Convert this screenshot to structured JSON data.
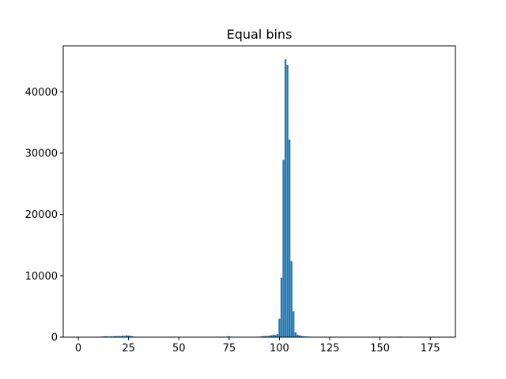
{
  "chart_data": {
    "type": "bar",
    "title": "Equal bins",
    "xlabel": "",
    "ylabel": "",
    "xlim": [
      -7.5,
      187.5
    ],
    "ylim": [
      0,
      47500
    ],
    "grid": false,
    "bar_color": "#1f77b4",
    "x_ticks": [
      0,
      25,
      50,
      75,
      100,
      125,
      150,
      175
    ],
    "y_ticks": [
      0,
      10000,
      20000,
      30000,
      40000
    ],
    "x_tick_labels": [
      "0",
      "25",
      "50",
      "75",
      "100",
      "125",
      "150",
      "175"
    ],
    "y_tick_labels": [
      "0",
      "10000",
      "20000",
      "30000",
      "40000"
    ],
    "x": [
      0,
      11,
      12,
      13,
      14,
      15,
      16,
      17,
      18,
      19,
      20,
      21,
      22,
      23,
      24,
      25,
      26,
      27,
      74,
      75,
      76,
      90,
      91,
      92,
      93,
      94,
      95,
      96,
      97,
      98,
      99,
      100,
      101,
      102,
      103,
      104,
      105,
      106,
      107,
      108,
      109,
      110,
      111,
      112,
      113,
      114,
      115,
      160,
      170
    ],
    "values": [
      50,
      80,
      100,
      120,
      150,
      100,
      130,
      120,
      180,
      160,
      200,
      150,
      250,
      200,
      300,
      250,
      200,
      150,
      100,
      150,
      80,
      80,
      120,
      150,
      200,
      180,
      250,
      300,
      400,
      350,
      500,
      3000,
      9700,
      28900,
      45300,
      44400,
      32200,
      12400,
      4200,
      800,
      400,
      300,
      200,
      150,
      120,
      100,
      80,
      80,
      80
    ]
  }
}
